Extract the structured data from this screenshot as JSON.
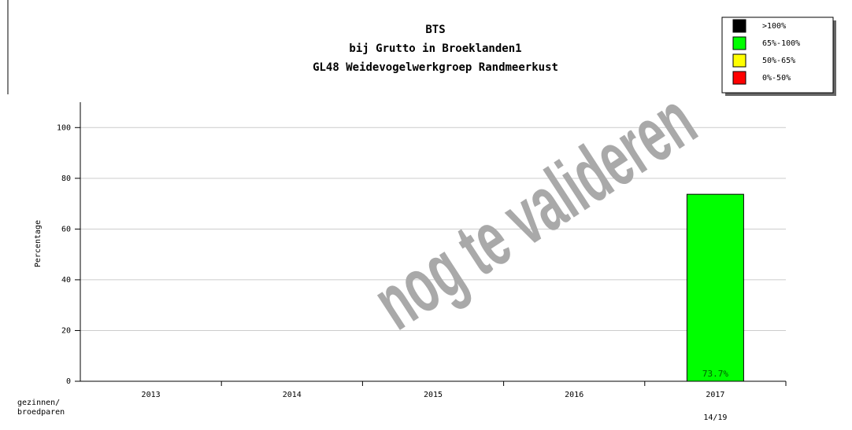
{
  "chart_data": {
    "type": "bar",
    "title": [
      "BTS",
      "bij Grutto in Broeklanden1",
      "GL48 Weidevogelwerkgroep Randmeerkust"
    ],
    "y_label": "Percentage",
    "watermark": "nog te valideren",
    "categories": [
      "2013",
      "2014",
      "2015",
      "2016",
      "2017"
    ],
    "values": [
      null,
      null,
      null,
      null,
      73.7
    ],
    "value_labels": [
      null,
      null,
      null,
      null,
      "73.7%"
    ],
    "color": "#00ff00",
    "counts_label": [
      "gezinnen/",
      "broedparen"
    ],
    "counts": [
      null,
      null,
      null,
      null,
      "14/19"
    ],
    "ylim": [
      0,
      110
    ],
    "yticks": [
      0,
      20,
      40,
      60,
      80,
      100
    ],
    "grid": true,
    "legend": {
      "position": "top-right",
      "entries": [
        {
          "label": ">100%",
          "color": "#000000"
        },
        {
          "label": "65%-100%",
          "color": "#00ff00"
        },
        {
          "label": "50%-65%",
          "color": "#ffff00"
        },
        {
          "label": "0%-50%",
          "color": "#ff0000"
        }
      ]
    }
  }
}
